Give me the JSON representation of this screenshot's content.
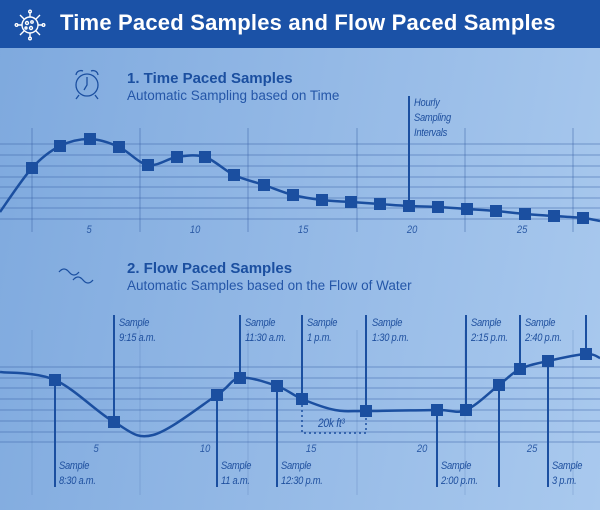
{
  "header": {
    "title": "Time Paced Samples and Flow Paced Samples",
    "icon": "virus-icon"
  },
  "colors": {
    "header": "#1b52a7",
    "line": "#1b4fa0",
    "background": "#94b9e6"
  },
  "section1": {
    "title": "1. Time Paced Samples",
    "subtitle": "Automatic Sampling based on Time",
    "icon": "alarm-clock-icon",
    "annotation": "Hourly\nSampling\nIntervals",
    "ticks": [
      "5",
      "10",
      "15",
      "20",
      "25"
    ]
  },
  "section2": {
    "title": "2. Flow Paced Samples",
    "subtitle": "Automatic Samples based on the Flow of Water",
    "icon": "water-waves-icon",
    "volume_label": "20k ft³",
    "ticks": [
      "5",
      "10",
      "15",
      "20",
      "25"
    ],
    "samples_above": [
      "Sample\n9:15 a.m.",
      "Sample\n11:30 a.m.",
      "Sample\n1 p.m.",
      "Sample\n1:30 p.m.",
      "Sample\n2:15 p.m.",
      "Sample\n2:40 p.m."
    ],
    "samples_below": [
      "Sample\n8:30 a.m.",
      "Sample\n11 a.m.",
      "Sample\n12:30 p.m.",
      "Sample\n2:00 p.m.",
      "Sample\n3 p.m."
    ]
  }
}
